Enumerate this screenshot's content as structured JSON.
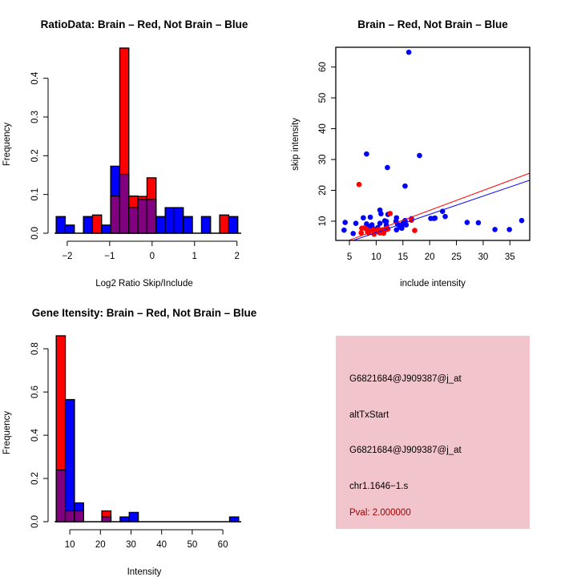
{
  "chart_data": [
    {
      "type": "bar",
      "id": "ratio",
      "title": "RatioData: Brain – Red, Not Brain – Blue",
      "xlabel": "Log2 Ratio Skip/Include",
      "ylabel": "Frequency",
      "xlim": [
        -2.3,
        2.1
      ],
      "ylim": [
        0,
        0.48
      ],
      "xticks": [
        -2,
        -1,
        0,
        1,
        2
      ],
      "xtick_labels": [
        "−2",
        "−1",
        "0",
        "1",
        "2"
      ],
      "yticks": [
        0,
        0.1,
        0.2,
        0.3,
        0.4
      ],
      "ytick_labels": [
        "0.0",
        "0.1",
        "0.2",
        "0.3",
        "0.4"
      ],
      "bin_start": -2.26,
      "bin_width": 0.214,
      "series": [
        {
          "name": "Brain",
          "color": "#ff0000",
          "values": [
            0,
            0,
            0,
            0,
            0.047,
            0,
            0.096,
            0.478,
            0.096,
            0.095,
            0.143,
            0,
            0,
            0,
            0,
            0,
            0,
            0,
            0.047,
            0
          ]
        },
        {
          "name": "Not Brain",
          "color": "#0000ff",
          "values": [
            0.043,
            0.021,
            0,
            0.043,
            0,
            0.021,
            0.173,
            0.152,
            0.066,
            0.087,
            0.087,
            0.043,
            0.066,
            0.066,
            0.043,
            0,
            0.043,
            0,
            0,
            0.043
          ]
        }
      ],
      "overlap_color": "#800080"
    },
    {
      "type": "scatter",
      "id": "scatter",
      "title": "Brain – Red, Not Brain – Blue",
      "xlabel": "include intensity",
      "ylabel": "skip intensity",
      "xlim": [
        2.45,
        38.7
      ],
      "ylim": [
        3.76,
        66.4
      ],
      "xticks": [
        5,
        10,
        15,
        20,
        25,
        30,
        35
      ],
      "xtick_labels": [
        "5",
        "10",
        "15",
        "20",
        "25",
        "30",
        "35"
      ],
      "yticks": [
        10,
        20,
        30,
        40,
        50,
        60
      ],
      "ytick_labels": [
        "10",
        "20",
        "30",
        "40",
        "50",
        "60"
      ],
      "series": [
        {
          "name": "Not Brain",
          "color": "#0000ff",
          "points": [
            [
              16.1,
              64.8
            ],
            [
              8.2,
              31.8
            ],
            [
              18.1,
              31.3
            ],
            [
              12.1,
              27.4
            ],
            [
              15.4,
              21.4
            ],
            [
              10.7,
              13.6
            ],
            [
              22.4,
              13.2
            ],
            [
              22.9,
              11.5
            ],
            [
              20.2,
              10.9
            ],
            [
              20.8,
              10.9
            ],
            [
              21,
              11
            ],
            [
              16.6,
              10.8
            ],
            [
              27,
              9.6
            ],
            [
              29.1,
              9.5
            ],
            [
              32.2,
              7.3
            ],
            [
              34.9,
              7.3
            ],
            [
              37.2,
              10.2
            ],
            [
              4.2,
              9.6
            ],
            [
              4,
              7.1
            ],
            [
              5.7,
              6
            ],
            [
              6.2,
              9.3
            ],
            [
              7.6,
              11.1
            ],
            [
              8.9,
              11.3
            ],
            [
              8.2,
              9.1
            ],
            [
              9.2,
              8.8
            ],
            [
              8.8,
              8.2
            ],
            [
              10.7,
              9.3
            ],
            [
              10.9,
              12.4
            ],
            [
              12.2,
              12.2
            ],
            [
              11.6,
              10.1
            ],
            [
              11.9,
              8.7
            ],
            [
              11.9,
              9.9
            ],
            [
              10.3,
              7.9
            ],
            [
              10.6,
              6.3
            ],
            [
              13.7,
              10
            ],
            [
              13.8,
              11.1
            ],
            [
              14,
              9
            ],
            [
              13.8,
              7.2
            ],
            [
              14.5,
              8
            ],
            [
              14.8,
              8.9
            ],
            [
              15.2,
              9.8
            ],
            [
              15.6,
              8.8
            ],
            [
              14.8,
              7.7
            ],
            [
              15.4,
              10.2
            ],
            [
              9.4,
              7.6
            ]
          ],
          "fit": {
            "intercept": 0.38,
            "slope": 0.592
          }
        },
        {
          "name": "Brain",
          "color": "#ff0000",
          "points": [
            [
              6.8,
              21.9
            ],
            [
              12.6,
              12.5
            ],
            [
              16.6,
              10.3
            ],
            [
              17.2,
              7
            ],
            [
              7.2,
              6.2
            ],
            [
              7.3,
              7.7
            ],
            [
              7.8,
              7.8
            ],
            [
              8.2,
              7.4
            ],
            [
              8.4,
              6.5
            ],
            [
              8.8,
              6.9
            ],
            [
              9.6,
              5.8
            ],
            [
              9.5,
              7.2
            ],
            [
              10,
              6.7
            ],
            [
              10.4,
              7.3
            ],
            [
              10.8,
              6.2
            ],
            [
              11.2,
              7.2
            ],
            [
              11.4,
              6.1
            ],
            [
              11.9,
              7.3
            ],
            [
              12.2,
              7.5
            ],
            [
              8.6,
              6.2
            ]
          ],
          "fit": {
            "intercept": 0.62,
            "slope": 0.645
          }
        }
      ]
    },
    {
      "type": "bar",
      "id": "intensity",
      "title": "Gene Itensity: Brain – Red, Not Brain – Blue",
      "xlabel": "Intensity",
      "ylabel": "Frequency",
      "xlim": [
        5,
        66
      ],
      "ylim": [
        0,
        0.86
      ],
      "xticks": [
        10,
        20,
        30,
        40,
        50,
        60
      ],
      "xtick_labels": [
        "10",
        "20",
        "30",
        "40",
        "50",
        "60"
      ],
      "yticks": [
        0,
        0.2,
        0.4,
        0.6,
        0.8
      ],
      "ytick_labels": [
        "0.0",
        "0.2",
        "0.4",
        "0.6",
        "0.8"
      ],
      "bin_start": 5.57,
      "bin_width": 2.98,
      "series": [
        {
          "name": "Brain",
          "color": "#ff0000",
          "values": [
            0.86,
            0.05,
            0.05,
            0,
            0,
            0.05,
            0,
            0,
            0,
            0,
            0,
            0,
            0,
            0,
            0,
            0,
            0,
            0,
            0,
            0
          ]
        },
        {
          "name": "Not Brain",
          "color": "#0000ff",
          "values": [
            0.239,
            0.565,
            0.087,
            0,
            0,
            0.022,
            0,
            0.022,
            0.043,
            0,
            0,
            0,
            0,
            0,
            0,
            0,
            0,
            0,
            0,
            0.022
          ]
        }
      ],
      "overlap_color": "#800080"
    }
  ],
  "info_panel": {
    "background": "#f2c4cc",
    "lines": [
      "G6821684@J909387@j_at",
      "altTxStart",
      "G6821684@J909387@j_at",
      "chr1.1646−1.s"
    ],
    "pval": "Pval: 2.000000",
    "pval_color": "#a00000"
  }
}
